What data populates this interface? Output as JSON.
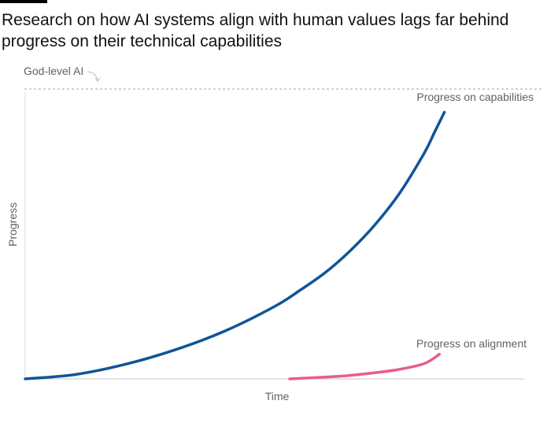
{
  "title": "Research on how AI systems align with human values lags far behind progress on their technical capabilities",
  "chart_data": {
    "type": "line",
    "xlabel": "Time",
    "ylabel": "Progress",
    "xlim": [
      0,
      100
    ],
    "ylim": [
      0,
      100
    ],
    "grid": false,
    "series": [
      {
        "name": "Progress on capabilities",
        "color": "#0f5499",
        "x": [
          0,
          10,
          20,
          30,
          40,
          50,
          55,
          60,
          65,
          70,
          75,
          80,
          82,
          84
        ],
        "y": [
          0,
          1.5,
          5,
          10,
          16.5,
          25,
          30.5,
          36.5,
          44,
          53,
          64,
          78,
          85,
          92
        ]
      },
      {
        "name": "Progress on alignment",
        "color": "#e95d8c",
        "x": [
          53,
          60,
          65,
          70,
          75,
          80,
          83
        ],
        "y": [
          0,
          0.6,
          1.2,
          2.1,
          3.3,
          5.3,
          8.5
        ]
      }
    ],
    "annotations": [
      {
        "text": "God-level AI",
        "y": 100,
        "line": "dotted"
      }
    ]
  }
}
